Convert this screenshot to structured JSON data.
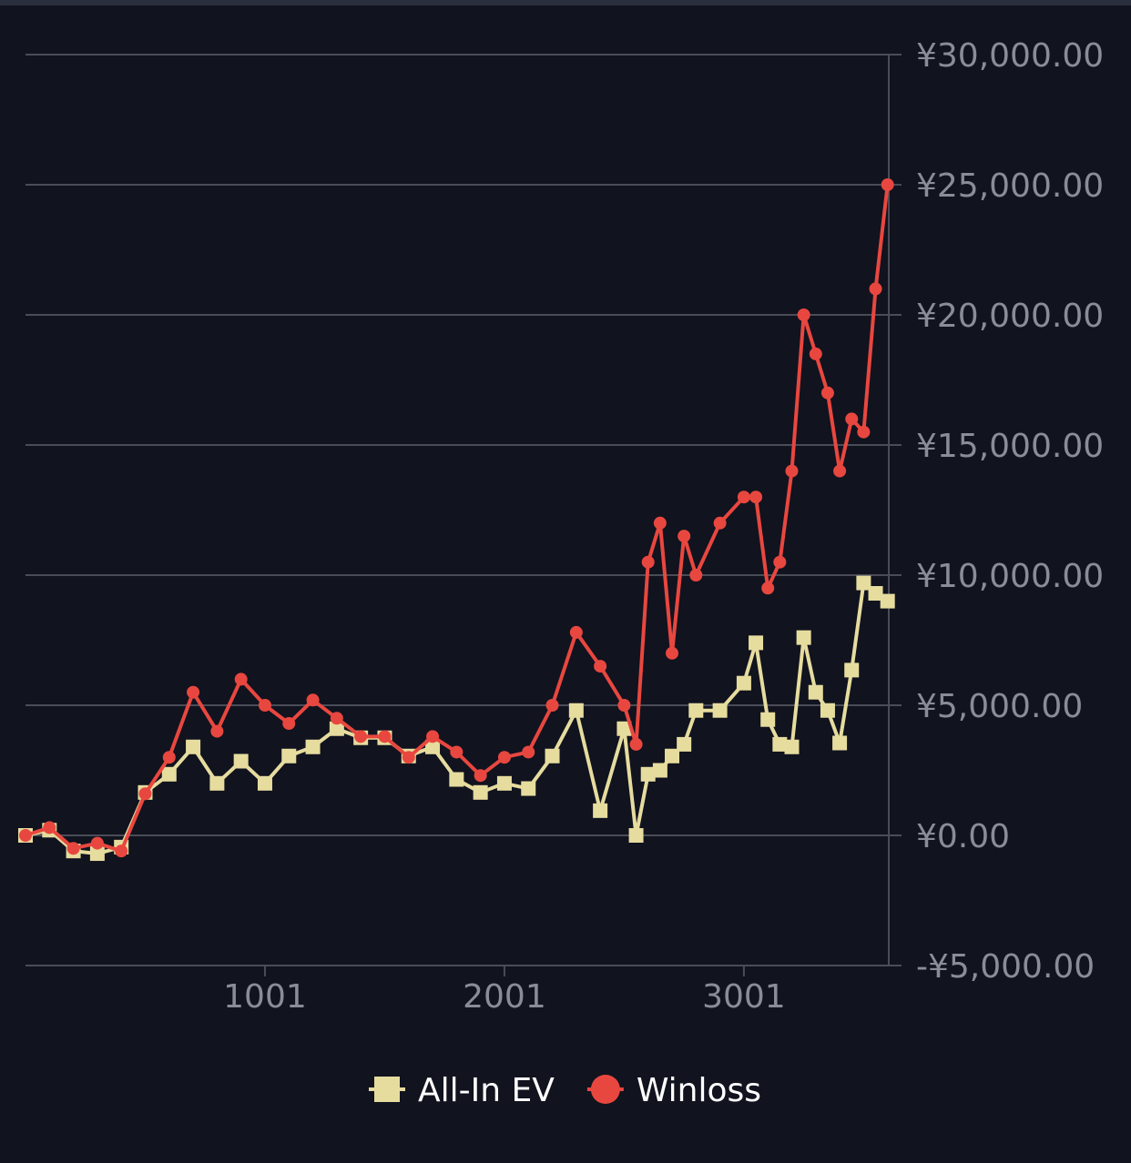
{
  "chart_data": {
    "type": "line",
    "x": [
      1,
      101,
      201,
      301,
      401,
      501,
      601,
      701,
      801,
      901,
      1001,
      1101,
      1201,
      1301,
      1401,
      1501,
      1601,
      1701,
      1801,
      1901,
      2001,
      2101,
      2201,
      2301,
      2401,
      2501,
      2551,
      2601,
      2651,
      2701,
      2751,
      2801,
      2901,
      3001,
      3051,
      3101,
      3151,
      3201,
      3251,
      3301,
      3351,
      3401,
      3451,
      3501,
      3551,
      3601
    ],
    "series": [
      {
        "name": "All-In EV",
        "color": "#e6dc9e",
        "marker": "square",
        "values": [
          0,
          200,
          -600,
          -700,
          -450,
          1650,
          2350,
          3400,
          2000,
          2850,
          2000,
          3050,
          3400,
          4100,
          3750,
          3750,
          3050,
          3400,
          2150,
          1650,
          2000,
          1800,
          3050,
          4800,
          950,
          4100,
          0,
          2350,
          2500,
          3050,
          3500,
          4800,
          4800,
          5850,
          7400,
          4450,
          3500,
          3400,
          7600,
          5500,
          4800,
          3550,
          6350,
          9700,
          9300,
          9000
        ]
      },
      {
        "name": "Winloss",
        "color": "#e8473f",
        "marker": "circle",
        "values": [
          0,
          300,
          -500,
          -300,
          -600,
          1600,
          3000,
          5500,
          4000,
          6000,
          5000,
          4300,
          5200,
          4500,
          3800,
          3800,
          3000,
          3800,
          3200,
          2300,
          3000,
          3200,
          5000,
          7800,
          6500,
          5000,
          3500,
          10500,
          12000,
          7000,
          11500,
          10000,
          12000,
          13000,
          13000,
          9500,
          10500,
          14000,
          20000,
          18500,
          17000,
          14000,
          16000,
          15500,
          21000,
          25000
        ]
      }
    ],
    "xlim": [
      1,
      3606
    ],
    "xticks": [
      1001,
      2001,
      3001
    ],
    "ylim": [
      -5000,
      30000
    ],
    "yticks": [
      {
        "value": -5000,
        "label": "-¥5,000.00"
      },
      {
        "value": 0,
        "label": "¥0.00"
      },
      {
        "value": 5000,
        "label": "¥5,000.00"
      },
      {
        "value": 10000,
        "label": "¥10,000.00"
      },
      {
        "value": 15000,
        "label": "¥15,000.00"
      },
      {
        "value": 20000,
        "label": "¥20,000.00"
      },
      {
        "value": 25000,
        "label": "¥25,000.00"
      },
      {
        "value": 30000,
        "label": "¥30,000.00"
      }
    ],
    "grid": true,
    "legend": "bottom"
  }
}
